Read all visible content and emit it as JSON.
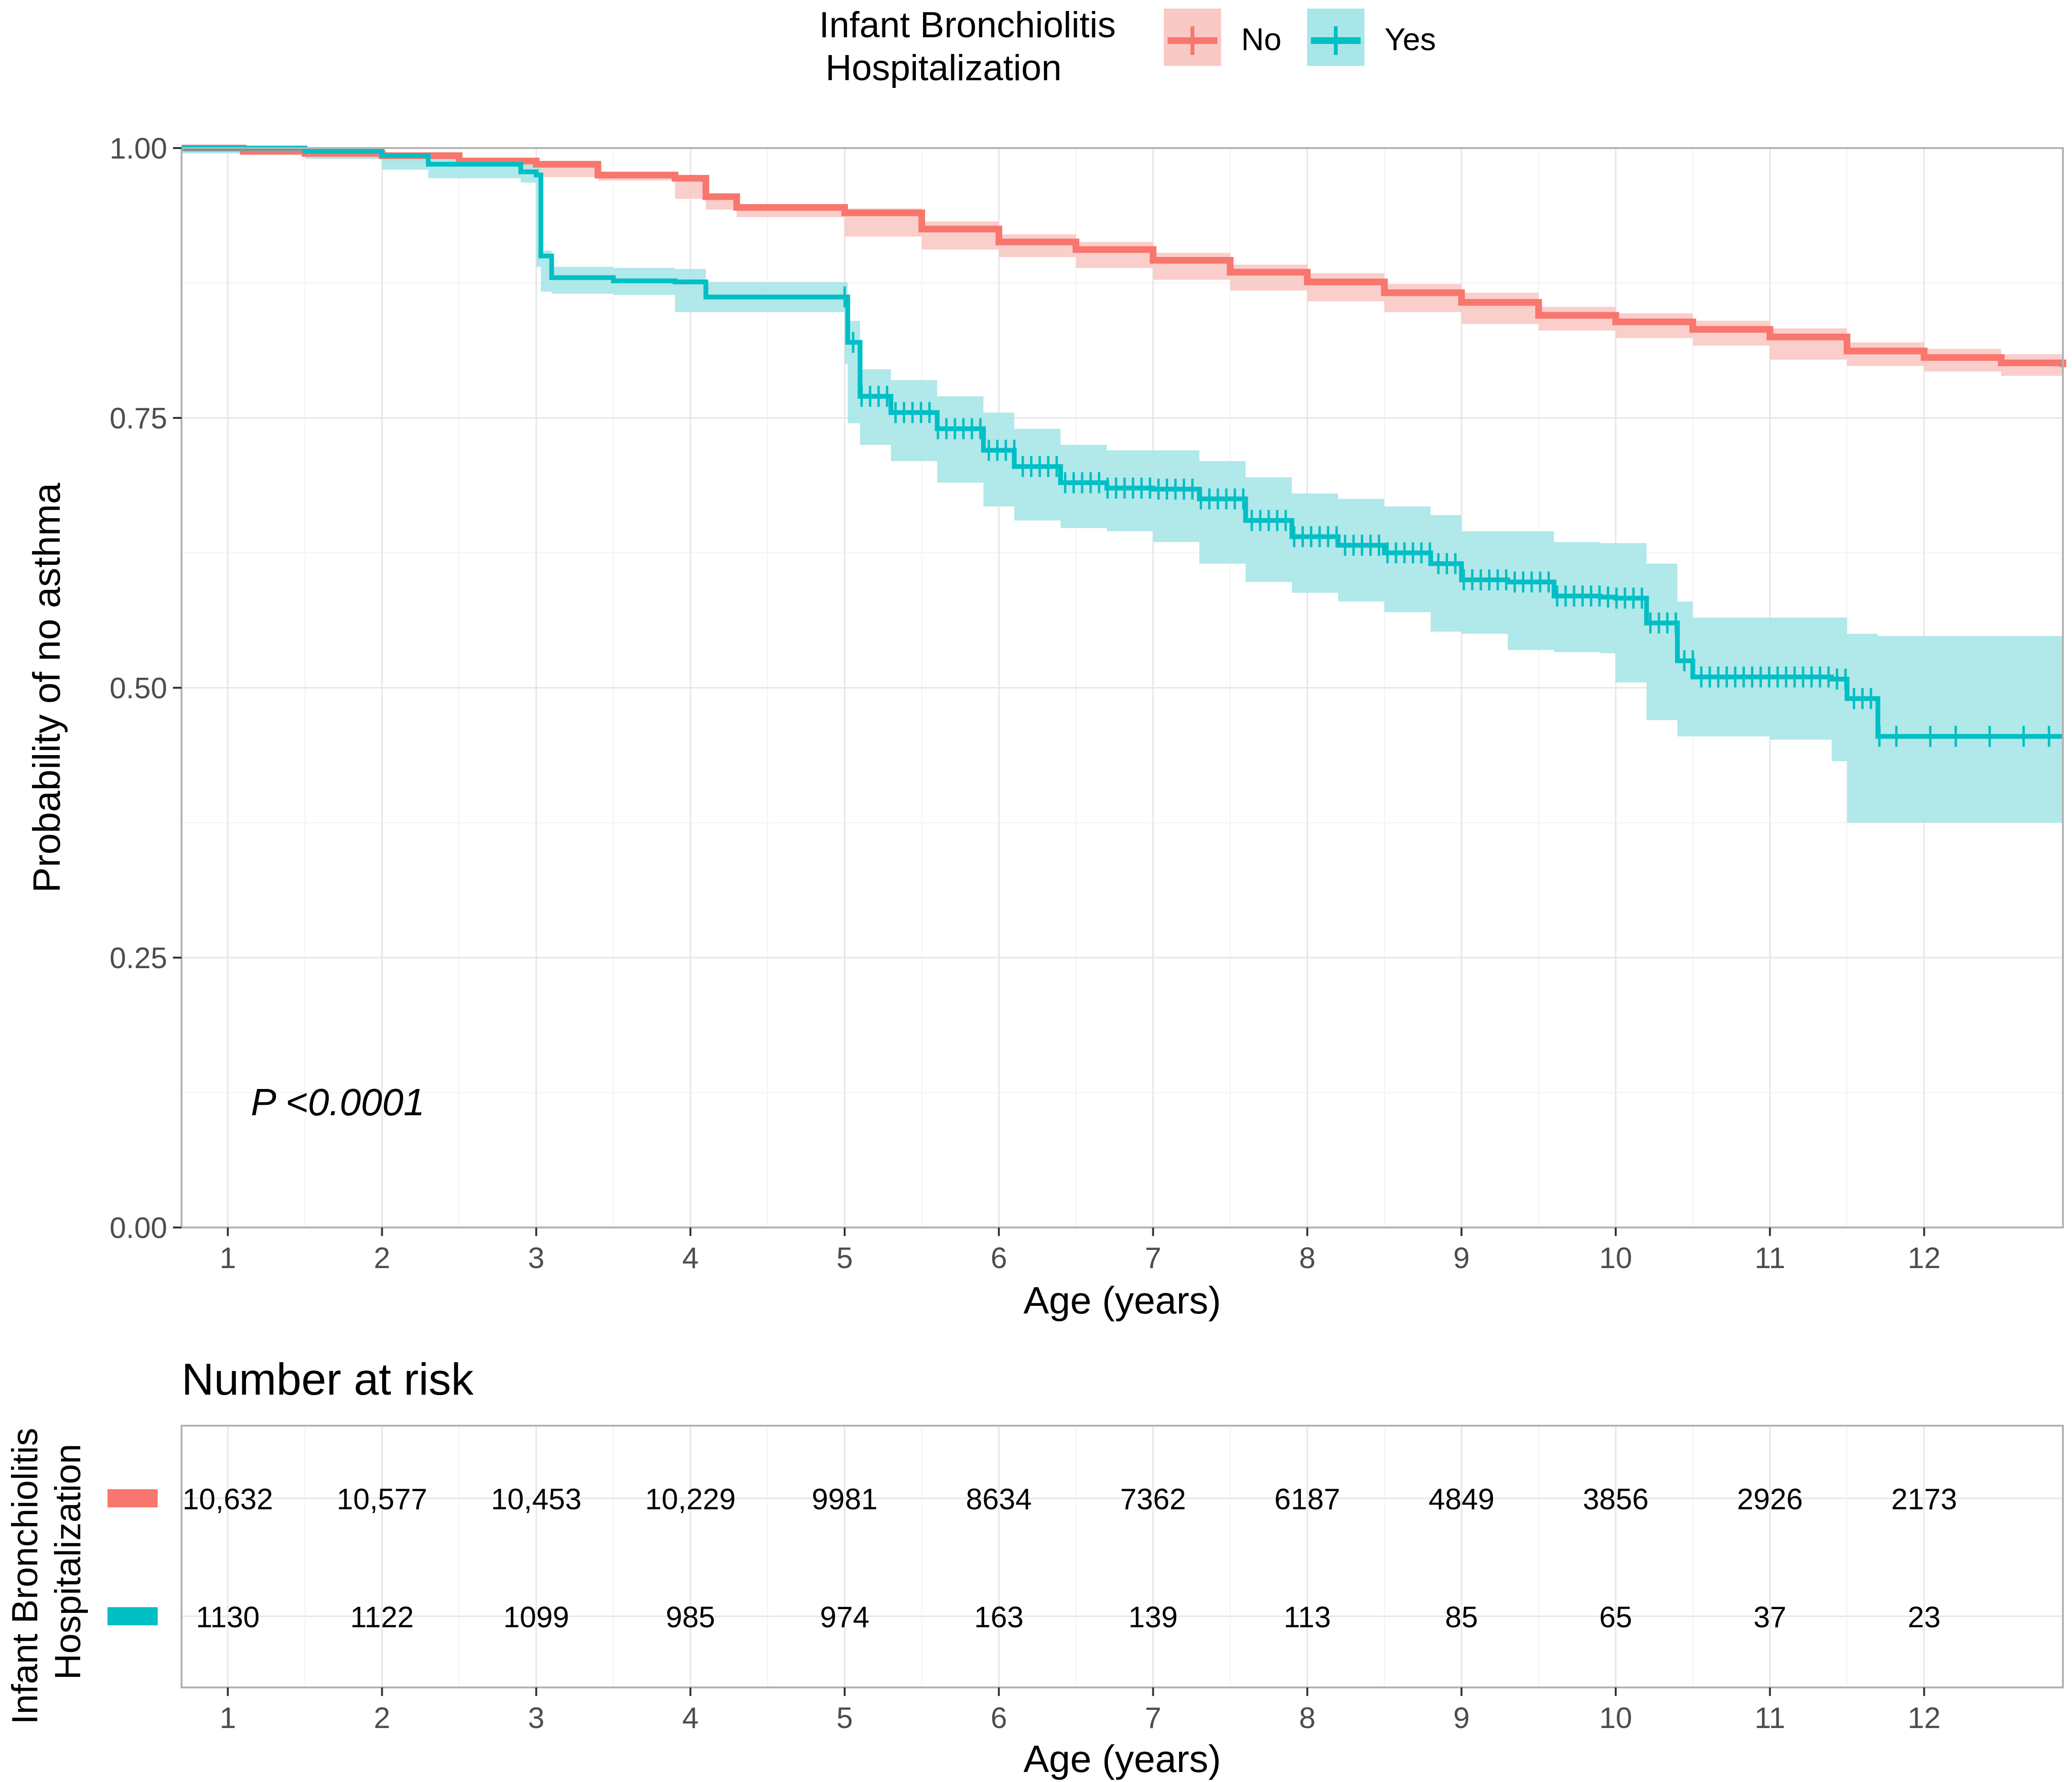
{
  "legend": {
    "title_line1": "Infant Bronchiolitis",
    "title_line2": "Hospitalization",
    "entries": [
      "No",
      "Yes"
    ]
  },
  "colors": {
    "no": "#F8766D",
    "yes": "#00BFC4",
    "no_fill": "#F8C9C5",
    "yes_fill": "#A8E6E8",
    "grid_major": "#E6E6E6",
    "grid_minor": "#F2F2F2",
    "panel_border": "#B3B3B3",
    "text": "#000000",
    "tick_text": "#4D4D4D"
  },
  "annotation": {
    "pvalue": "P <0.0001"
  },
  "risk_table": {
    "title": "Number at risk",
    "ylabel_line1": "Infant Bronchiolitis",
    "ylabel_line2": "Hospitalization",
    "xlabel": "Age (years)",
    "rows": [
      {
        "group": "No",
        "counts": [
          "10,632",
          "10,577",
          "10,453",
          "10,229",
          "9981",
          "8634",
          "7362",
          "6187",
          "4849",
          "3856",
          "2926",
          "2173"
        ]
      },
      {
        "group": "Yes",
        "counts": [
          "1130",
          "1122",
          "1099",
          "985",
          "974",
          "163",
          "139",
          "113",
          "85",
          "65",
          "37",
          "23"
        ]
      }
    ]
  },
  "chart_data": {
    "type": "line",
    "title": "",
    "xlabel": "Age (years)",
    "ylabel": "Probability of no asthma",
    "xlim": [
      0.7,
      12.9
    ],
    "ylim": [
      0,
      1
    ],
    "xticks": [
      "1",
      "2",
      "3",
      "4",
      "5",
      "6",
      "7",
      "8",
      "9",
      "10",
      "11",
      "12"
    ],
    "yticks": [
      "0.00",
      "0.25",
      "0.50",
      "0.75",
      "1.00"
    ],
    "grid": true,
    "legend_position": "top",
    "series": [
      {
        "name": "No",
        "x": [
          0.7,
          1.1,
          1.5,
          2.0,
          2.5,
          3.0,
          3.4,
          3.9,
          4.1,
          4.3,
          5.0,
          5.5,
          6.0,
          6.5,
          7.0,
          7.5,
          8.0,
          8.5,
          9.0,
          9.5,
          10.0,
          10.5,
          11.0,
          11.5,
          12.0,
          12.5,
          12.9
        ],
        "y": [
          1.0,
          0.997,
          0.995,
          0.993,
          0.988,
          0.985,
          0.975,
          0.972,
          0.955,
          0.945,
          0.94,
          0.925,
          0.913,
          0.906,
          0.896,
          0.885,
          0.876,
          0.866,
          0.857,
          0.845,
          0.839,
          0.832,
          0.825,
          0.812,
          0.806,
          0.801,
          0.797
        ],
        "ci_upper": [
          1.0,
          0.998,
          0.996,
          0.995,
          0.99,
          0.987,
          0.977,
          0.974,
          0.957,
          0.947,
          0.944,
          0.932,
          0.92,
          0.913,
          0.903,
          0.892,
          0.884,
          0.874,
          0.866,
          0.853,
          0.847,
          0.84,
          0.833,
          0.82,
          0.814,
          0.809,
          0.805
        ],
        "ci_lower": [
          1.0,
          0.996,
          0.994,
          0.991,
          0.986,
          0.983,
          0.973,
          0.97,
          0.953,
          0.943,
          0.936,
          0.918,
          0.906,
          0.899,
          0.889,
          0.878,
          0.868,
          0.858,
          0.848,
          0.837,
          0.831,
          0.824,
          0.817,
          0.804,
          0.798,
          0.793,
          0.789
        ]
      },
      {
        "name": "Yes",
        "x": [
          0.7,
          1.5,
          2.0,
          2.3,
          2.9,
          3.0,
          3.03,
          3.1,
          3.5,
          3.9,
          4.1,
          4.5,
          5.0,
          5.02,
          5.1,
          5.3,
          5.6,
          5.9,
          6.1,
          6.4,
          6.7,
          7.0,
          7.3,
          7.6,
          7.9,
          8.2,
          8.5,
          8.8,
          9.0,
          9.3,
          9.6,
          9.9,
          10.0,
          10.2,
          10.4,
          10.5,
          11.0,
          11.4,
          11.5,
          11.7,
          12.0,
          12.5,
          12.9
        ],
        "y": [
          1.0,
          0.997,
          0.993,
          0.985,
          0.978,
          0.975,
          0.9,
          0.88,
          0.877,
          0.876,
          0.862,
          0.862,
          0.862,
          0.82,
          0.77,
          0.755,
          0.74,
          0.72,
          0.705,
          0.69,
          0.685,
          0.684,
          0.675,
          0.655,
          0.64,
          0.632,
          0.625,
          0.615,
          0.6,
          0.598,
          0.585,
          0.584,
          0.583,
          0.56,
          0.525,
          0.51,
          0.51,
          0.508,
          0.49,
          0.455,
          0.455,
          0.455,
          0.455
        ],
        "ci_upper": [
          1.0,
          0.999,
          0.996,
          0.99,
          0.984,
          0.982,
          0.905,
          0.89,
          0.889,
          0.888,
          0.876,
          0.876,
          0.876,
          0.84,
          0.795,
          0.785,
          0.77,
          0.755,
          0.74,
          0.725,
          0.72,
          0.72,
          0.71,
          0.695,
          0.68,
          0.675,
          0.668,
          0.66,
          0.645,
          0.645,
          0.635,
          0.634,
          0.634,
          0.615,
          0.58,
          0.565,
          0.565,
          0.565,
          0.55,
          0.548,
          0.548,
          0.548,
          0.548
        ],
        "ci_lower": [
          1.0,
          0.995,
          0.99,
          0.98,
          0.972,
          0.968,
          0.89,
          0.867,
          0.865,
          0.864,
          0.848,
          0.848,
          0.848,
          0.8,
          0.745,
          0.725,
          0.71,
          0.69,
          0.668,
          0.655,
          0.648,
          0.645,
          0.635,
          0.615,
          0.598,
          0.588,
          0.58,
          0.57,
          0.552,
          0.55,
          0.535,
          0.533,
          0.532,
          0.505,
          0.47,
          0.455,
          0.455,
          0.452,
          0.432,
          0.375,
          0.375,
          0.375,
          0.375
        ]
      }
    ]
  }
}
